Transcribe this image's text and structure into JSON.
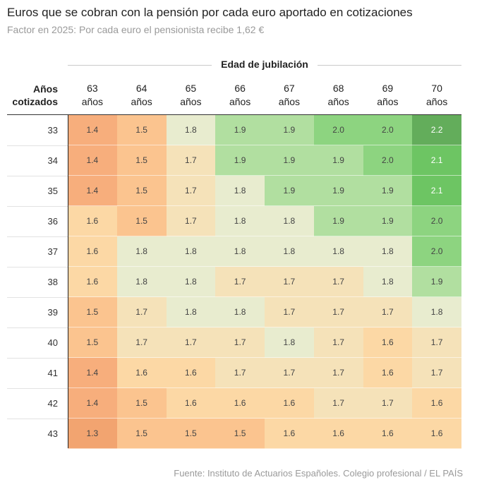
{
  "header": {
    "title": "Euros que se cobran con la pensión por cada euro aportado en cotizaciones",
    "subtitle": "Factor en 2025: Por cada euro el pensionista recibe 1,62 €"
  },
  "footer": {
    "source": "Fuente: Instituto de Actuarios Españoles. Colegio profesional / EL PAÍS"
  },
  "chart_data": {
    "type": "heatmap",
    "title": "Euros que se cobran con la pensión por cada euro aportado en cotizaciones",
    "subtitle": "Factor en 2025: Por cada euro el pensionista recibe 1,62 €",
    "column_group_label": "Edad de jubilación",
    "row_header": [
      "Años",
      "cotizados"
    ],
    "columns": [
      {
        "age": "63",
        "unit": "años"
      },
      {
        "age": "64",
        "unit": "años"
      },
      {
        "age": "65",
        "unit": "años"
      },
      {
        "age": "66",
        "unit": "años"
      },
      {
        "age": "67",
        "unit": "años"
      },
      {
        "age": "68",
        "unit": "años"
      },
      {
        "age": "69",
        "unit": "años"
      },
      {
        "age": "70",
        "unit": "años"
      }
    ],
    "rows": [
      "33",
      "34",
      "35",
      "36",
      "37",
      "38",
      "39",
      "40",
      "41",
      "42",
      "43"
    ],
    "values": [
      [
        1.4,
        1.5,
        1.8,
        1.9,
        1.9,
        2.0,
        2.0,
        2.2
      ],
      [
        1.4,
        1.5,
        1.7,
        1.9,
        1.9,
        1.9,
        2.0,
        2.1
      ],
      [
        1.4,
        1.5,
        1.7,
        1.8,
        1.9,
        1.9,
        1.9,
        2.1
      ],
      [
        1.6,
        1.5,
        1.7,
        1.8,
        1.8,
        1.9,
        1.9,
        2.0
      ],
      [
        1.6,
        1.8,
        1.8,
        1.8,
        1.8,
        1.8,
        1.8,
        2.0
      ],
      [
        1.6,
        1.8,
        1.8,
        1.7,
        1.7,
        1.7,
        1.8,
        1.9
      ],
      [
        1.5,
        1.7,
        1.8,
        1.8,
        1.7,
        1.7,
        1.7,
        1.8
      ],
      [
        1.5,
        1.7,
        1.7,
        1.7,
        1.8,
        1.7,
        1.6,
        1.7
      ],
      [
        1.4,
        1.6,
        1.6,
        1.7,
        1.7,
        1.7,
        1.6,
        1.7
      ],
      [
        1.4,
        1.5,
        1.6,
        1.6,
        1.6,
        1.7,
        1.7,
        1.6
      ],
      [
        1.3,
        1.5,
        1.5,
        1.5,
        1.6,
        1.6,
        1.6,
        1.6
      ]
    ],
    "value_labels": [
      [
        "1.4",
        "1.5",
        "1.8",
        "1.9",
        "1.9",
        "2.0",
        "2.0",
        "2.2"
      ],
      [
        "1.4",
        "1.5",
        "1.7",
        "1.9",
        "1.9",
        "1.9",
        "2.0",
        "2.1"
      ],
      [
        "1.4",
        "1.5",
        "1.7",
        "1.8",
        "1.9",
        "1.9",
        "1.9",
        "2.1"
      ],
      [
        "1.6",
        "1.5",
        "1.7",
        "1.8",
        "1.8",
        "1.9",
        "1.9",
        "2.0"
      ],
      [
        "1.6",
        "1.8",
        "1.8",
        "1.8",
        "1.8",
        "1.8",
        "1.8",
        "2.0"
      ],
      [
        "1.6",
        "1.8",
        "1.8",
        "1.7",
        "1.7",
        "1.7",
        "1.8",
        "1.9"
      ],
      [
        "1.5",
        "1.7",
        "1.8",
        "1.8",
        "1.7",
        "1.7",
        "1.7",
        "1.8"
      ],
      [
        "1.5",
        "1.7",
        "1.7",
        "1.7",
        "1.8",
        "1.7",
        "1.6",
        "1.7"
      ],
      [
        "1.4",
        "1.6",
        "1.6",
        "1.7",
        "1.7",
        "1.7",
        "1.6",
        "1.7"
      ],
      [
        "1.4",
        "1.5",
        "1.6",
        "1.6",
        "1.6",
        "1.7",
        "1.7",
        "1.6"
      ],
      [
        "1.3",
        "1.5",
        "1.5",
        "1.5",
        "1.6",
        "1.6",
        "1.6",
        "1.6"
      ]
    ],
    "color_scale": {
      "1.3": "#f2a470",
      "1.4": "#f7ae7c",
      "1.5": "#fbc48f",
      "1.6": "#fcd8a5",
      "1.7": "#f5e2b9",
      "1.8": "#e8eccf",
      "1.9": "#b1dfa0",
      "2.0": "#8dd480",
      "2.1": "#6dc563",
      "2.2": "#63ad5b"
    },
    "xlabel": "Edad de jubilación",
    "ylabel": "Años cotizados"
  }
}
